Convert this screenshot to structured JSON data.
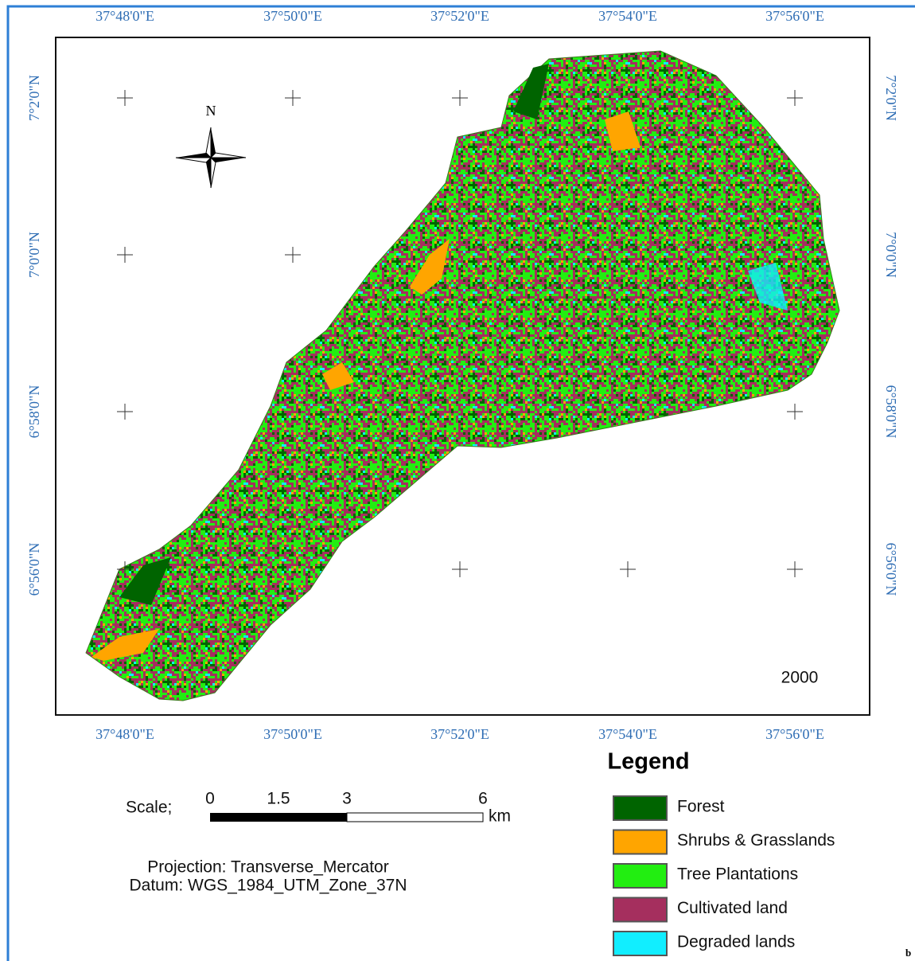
{
  "top_labels": [
    "37°48'0\"E",
    "37°50'0\"E",
    "37°52'0\"E",
    "37°54'0\"E",
    "37°56'0\"E"
  ],
  "bottom_labels": [
    "37°48'0\"E",
    "37°50'0\"E",
    "37°52'0\"E",
    "37°54'0\"E",
    "37°56'0\"E"
  ],
  "left_labels": [
    "7°2'0\"N",
    "7°0'0\"N",
    "6°58'0\"N",
    "6°56'0\"N"
  ],
  "right_labels": [
    "7°2'0\"N",
    "7°0'0\"N",
    "6°58'0\"N",
    "6°56'0\"N"
  ],
  "north": "N",
  "year": "2000",
  "legend": {
    "title": "Legend",
    "items": [
      {
        "label": "Forest",
        "color": "#006400"
      },
      {
        "label": "Shrubs & Grasslands",
        "color": "#ffa500"
      },
      {
        "label": "Tree Plantations",
        "color": "#22ee11"
      },
      {
        "label": "Cultivated land",
        "color": "#a52f5e"
      },
      {
        "label": "Degraded lands",
        "color": "#11eeff"
      }
    ]
  },
  "scale": {
    "title": "Scale;",
    "ticks": [
      "0",
      "1.5",
      "3",
      "6"
    ],
    "unit": "km"
  },
  "projection": "Projection: Transverse_Mercator",
  "datum": "Datum: WGS_1984_UTM_Zone_37N",
  "panel": "b"
}
